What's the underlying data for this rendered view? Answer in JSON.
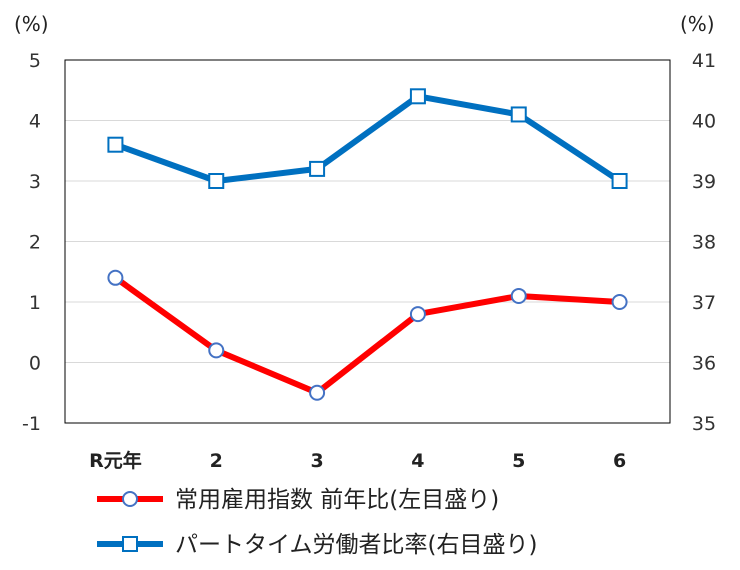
{
  "chart_data": {
    "type": "line",
    "categories": [
      "R元年",
      "2",
      "3",
      "4",
      "5",
      "6"
    ],
    "series": [
      {
        "name": "常用雇用指数 前年比(左目盛り)",
        "axis": "left",
        "color": "#ff0000",
        "marker": "circle",
        "values": [
          1.4,
          0.2,
          -0.5,
          0.8,
          1.1,
          1.0
        ]
      },
      {
        "name": "パートタイム労働者比率(右目盛り)",
        "axis": "right",
        "color": "#0070c0",
        "marker": "square",
        "values": [
          39.6,
          39.0,
          39.2,
          40.4,
          40.1,
          39.0
        ]
      }
    ],
    "y_left": {
      "unit": "(%)",
      "ylim": [
        -1,
        5
      ],
      "ticks": [
        "5",
        "4",
        "3",
        "2",
        "1",
        "0",
        "-1"
      ]
    },
    "y_right": {
      "unit": "(%)",
      "ylim": [
        35,
        41
      ],
      "ticks": [
        "41",
        "40",
        "39",
        "38",
        "37",
        "36",
        "35"
      ]
    },
    "grid": "horizontal",
    "legend_position": "bottom"
  }
}
